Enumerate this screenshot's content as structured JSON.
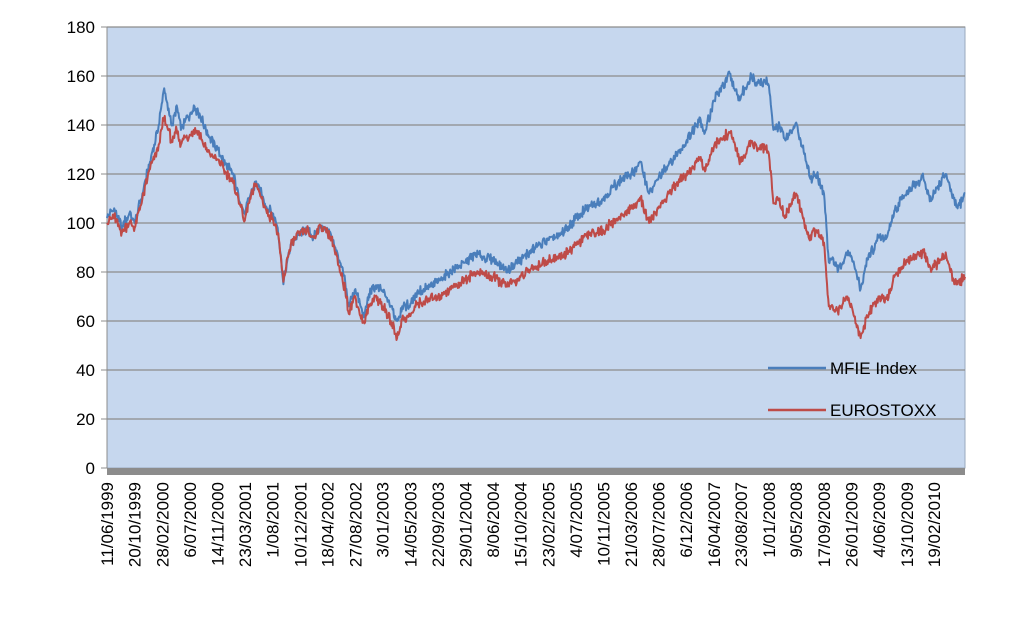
{
  "chart_data": {
    "type": "line",
    "title": "",
    "xlabel": "",
    "ylabel": "",
    "ylim": [
      0,
      180
    ],
    "yticks": [
      0,
      20,
      40,
      60,
      80,
      100,
      120,
      140,
      160,
      180
    ],
    "xlim": [
      "1999-06-11",
      "2010-07-15"
    ],
    "xtick_labels": [
      "11/06/1999",
      "20/10/1999",
      "28/02/2000",
      "6/07/2000",
      "14/11/2000",
      "23/03/2001",
      "1/08/2001",
      "10/12/2001",
      "18/04/2002",
      "27/08/2002",
      "3/01/2003",
      "14/05/2003",
      "22/09/2003",
      "29/01/2004",
      "8/06/2004",
      "15/10/2004",
      "23/02/2005",
      "4/07/2005",
      "10/11/2005",
      "21/03/2006",
      "28/07/2006",
      "6/12/2006",
      "16/04/2007",
      "23/08/2007",
      "1/01/2008",
      "9/05/2008",
      "17/09/2008",
      "26/01/2009",
      "4/06/2009",
      "13/10/2009",
      "19/02/2010"
    ],
    "xtick_dates": [
      "1999-06-11",
      "1999-10-20",
      "2000-02-28",
      "2000-07-06",
      "2000-11-14",
      "2001-03-23",
      "2001-08-01",
      "2001-12-10",
      "2002-04-18",
      "2002-08-27",
      "2003-01-03",
      "2003-05-14",
      "2003-09-22",
      "2004-01-29",
      "2004-06-08",
      "2004-10-15",
      "2005-02-23",
      "2005-07-04",
      "2005-11-10",
      "2006-03-21",
      "2006-07-28",
      "2006-12-06",
      "2007-04-16",
      "2007-08-23",
      "2008-01-01",
      "2008-05-09",
      "2008-09-17",
      "2009-01-26",
      "2009-06-04",
      "2009-10-13",
      "2010-02-19"
    ],
    "grid": true,
    "legend_position": "bottom-right",
    "plot_background": "#c6d7ee",
    "series": [
      {
        "name": "MFIE Index",
        "color": "#4a7ebb",
        "points": [
          [
            "1999-06-11",
            102
          ],
          [
            "1999-07-15",
            106
          ],
          [
            "1999-08-20",
            98
          ],
          [
            "1999-09-25",
            104
          ],
          [
            "1999-10-20",
            100
          ],
          [
            "1999-11-25",
            112
          ],
          [
            "1999-12-31",
            125
          ],
          [
            "2000-01-20",
            132
          ],
          [
            "2000-02-10",
            140
          ],
          [
            "2000-03-07",
            155
          ],
          [
            "2000-03-25",
            146
          ],
          [
            "2000-04-15",
            140
          ],
          [
            "2000-05-05",
            148
          ],
          [
            "2000-05-25",
            138
          ],
          [
            "2000-06-15",
            142
          ],
          [
            "2000-07-06",
            144
          ],
          [
            "2000-07-25",
            148
          ],
          [
            "2000-08-15",
            145
          ],
          [
            "2000-09-01",
            142
          ],
          [
            "2000-09-20",
            138
          ],
          [
            "2000-10-10",
            135
          ],
          [
            "2000-11-14",
            130
          ],
          [
            "2000-12-20",
            124
          ],
          [
            "2001-01-25",
            120
          ],
          [
            "2001-02-20",
            112
          ],
          [
            "2001-03-23",
            104
          ],
          [
            "2001-04-10",
            110
          ],
          [
            "2001-05-15",
            117
          ],
          [
            "2001-06-10",
            112
          ],
          [
            "2001-07-05",
            106
          ],
          [
            "2001-08-01",
            104
          ],
          [
            "2001-08-25",
            98
          ],
          [
            "2001-09-11",
            85
          ],
          [
            "2001-09-21",
            75
          ],
          [
            "2001-10-10",
            85
          ],
          [
            "2001-11-01",
            92
          ],
          [
            "2001-12-10",
            96
          ],
          [
            "2002-01-10",
            97
          ],
          [
            "2002-02-10",
            94
          ],
          [
            "2002-03-15",
            99
          ],
          [
            "2002-04-18",
            97
          ],
          [
            "2002-05-15",
            93
          ],
          [
            "2002-06-15",
            84
          ],
          [
            "2002-07-10",
            76
          ],
          [
            "2002-07-24",
            66
          ],
          [
            "2002-08-27",
            73
          ],
          [
            "2002-09-20",
            66
          ],
          [
            "2002-10-09",
            62
          ],
          [
            "2002-10-30",
            71
          ],
          [
            "2002-11-28",
            74
          ],
          [
            "2003-01-03",
            72
          ],
          [
            "2003-02-10",
            66
          ],
          [
            "2003-03-12",
            60
          ],
          [
            "2003-04-05",
            66
          ],
          [
            "2003-05-14",
            67
          ],
          [
            "2003-06-15",
            72
          ],
          [
            "2003-07-15",
            73
          ],
          [
            "2003-08-15",
            74
          ],
          [
            "2003-09-22",
            76
          ],
          [
            "2003-11-15",
            80
          ],
          [
            "2004-01-29",
            84
          ],
          [
            "2004-03-10",
            87
          ],
          [
            "2004-04-20",
            86
          ],
          [
            "2004-06-08",
            85
          ],
          [
            "2004-08-12",
            81
          ],
          [
            "2004-10-15",
            85
          ],
          [
            "2004-12-20",
            90
          ],
          [
            "2005-02-23",
            93
          ],
          [
            "2005-04-20",
            95
          ],
          [
            "2005-07-04",
            102
          ],
          [
            "2005-09-10",
            107
          ],
          [
            "2005-11-10",
            110
          ],
          [
            "2006-01-20",
            117
          ],
          [
            "2006-03-21",
            120
          ],
          [
            "2006-05-05",
            125
          ],
          [
            "2006-06-14",
            112
          ],
          [
            "2006-07-28",
            118
          ],
          [
            "2006-09-15",
            124
          ],
          [
            "2006-12-06",
            133
          ],
          [
            "2007-02-10",
            143
          ],
          [
            "2007-03-05",
            137
          ],
          [
            "2007-04-16",
            150
          ],
          [
            "2007-05-31",
            156
          ],
          [
            "2007-06-30",
            161
          ],
          [
            "2007-07-25",
            154
          ],
          [
            "2007-08-16",
            150
          ],
          [
            "2007-08-23",
            152
          ],
          [
            "2007-10-10",
            160
          ],
          [
            "2007-11-10",
            157
          ],
          [
            "2007-12-15",
            158
          ],
          [
            "2008-01-01",
            156
          ],
          [
            "2008-01-22",
            138
          ],
          [
            "2008-02-20",
            140
          ],
          [
            "2008-03-17",
            134
          ],
          [
            "2008-04-15",
            137
          ],
          [
            "2008-05-09",
            141
          ],
          [
            "2008-06-25",
            125
          ],
          [
            "2008-07-15",
            118
          ],
          [
            "2008-08-15",
            120
          ],
          [
            "2008-09-17",
            112
          ],
          [
            "2008-10-10",
            84
          ],
          [
            "2008-10-28",
            86
          ],
          [
            "2008-11-21",
            80
          ],
          [
            "2008-12-31",
            88
          ],
          [
            "2009-01-26",
            86
          ],
          [
            "2009-03-09",
            73
          ],
          [
            "2009-04-10",
            85
          ],
          [
            "2009-06-04",
            94
          ],
          [
            "2009-07-10",
            94
          ],
          [
            "2009-08-15",
            105
          ],
          [
            "2009-10-13",
            113
          ],
          [
            "2009-11-20",
            116
          ],
          [
            "2009-12-31",
            118
          ],
          [
            "2010-02-05",
            109
          ],
          [
            "2010-02-19",
            112
          ],
          [
            "2010-04-15",
            120
          ],
          [
            "2010-05-07",
            113
          ],
          [
            "2010-06-10",
            106
          ],
          [
            "2010-07-15",
            112
          ]
        ]
      },
      {
        "name": "EUROSTOXX",
        "color": "#be4b48",
        "points": [
          [
            "1999-06-11",
            100
          ],
          [
            "1999-07-15",
            103
          ],
          [
            "1999-08-20",
            96
          ],
          [
            "1999-09-25",
            100
          ],
          [
            "1999-10-20",
            98
          ],
          [
            "1999-11-25",
            110
          ],
          [
            "1999-12-31",
            122
          ],
          [
            "2000-01-20",
            126
          ],
          [
            "2000-02-10",
            132
          ],
          [
            "2000-03-07",
            143
          ],
          [
            "2000-03-25",
            138
          ],
          [
            "2000-04-15",
            133
          ],
          [
            "2000-05-05",
            138
          ],
          [
            "2000-05-25",
            132
          ],
          [
            "2000-06-15",
            135
          ],
          [
            "2000-07-06",
            136
          ],
          [
            "2000-07-25",
            138
          ],
          [
            "2000-08-15",
            137
          ],
          [
            "2000-09-01",
            134
          ],
          [
            "2000-09-20",
            130
          ],
          [
            "2000-10-10",
            128
          ],
          [
            "2000-11-14",
            126
          ],
          [
            "2000-12-20",
            121
          ],
          [
            "2001-01-25",
            117
          ],
          [
            "2001-02-20",
            110
          ],
          [
            "2001-03-23",
            101
          ],
          [
            "2001-04-10",
            108
          ],
          [
            "2001-05-15",
            116
          ],
          [
            "2001-06-10",
            110
          ],
          [
            "2001-07-05",
            104
          ],
          [
            "2001-08-01",
            102
          ],
          [
            "2001-08-25",
            96
          ],
          [
            "2001-09-11",
            84
          ],
          [
            "2001-09-21",
            76
          ],
          [
            "2001-10-10",
            86
          ],
          [
            "2001-11-01",
            92
          ],
          [
            "2001-12-10",
            96
          ],
          [
            "2002-01-10",
            97
          ],
          [
            "2002-02-10",
            94
          ],
          [
            "2002-03-15",
            99
          ],
          [
            "2002-04-18",
            96
          ],
          [
            "2002-05-15",
            91
          ],
          [
            "2002-06-15",
            80
          ],
          [
            "2002-07-10",
            73
          ],
          [
            "2002-07-24",
            64
          ],
          [
            "2002-08-27",
            70
          ],
          [
            "2002-09-20",
            62
          ],
          [
            "2002-10-09",
            59
          ],
          [
            "2002-10-30",
            66
          ],
          [
            "2002-11-28",
            70
          ],
          [
            "2003-01-03",
            66
          ],
          [
            "2003-02-10",
            60
          ],
          [
            "2003-03-12",
            53
          ],
          [
            "2003-04-05",
            61
          ],
          [
            "2003-05-14",
            62
          ],
          [
            "2003-06-15",
            67
          ],
          [
            "2003-07-15",
            68
          ],
          [
            "2003-08-15",
            69
          ],
          [
            "2003-09-22",
            70
          ],
          [
            "2003-11-15",
            73
          ],
          [
            "2004-01-29",
            77
          ],
          [
            "2004-03-10",
            80
          ],
          [
            "2004-04-20",
            79
          ],
          [
            "2004-06-08",
            78
          ],
          [
            "2004-08-12",
            74
          ],
          [
            "2004-10-15",
            78
          ],
          [
            "2004-12-20",
            82
          ],
          [
            "2005-02-23",
            85
          ],
          [
            "2005-04-20",
            86
          ],
          [
            "2005-07-04",
            91
          ],
          [
            "2005-09-10",
            96
          ],
          [
            "2005-11-10",
            97
          ],
          [
            "2006-01-20",
            102
          ],
          [
            "2006-03-21",
            106
          ],
          [
            "2006-05-05",
            110
          ],
          [
            "2006-06-14",
            100
          ],
          [
            "2006-07-28",
            106
          ],
          [
            "2006-09-15",
            112
          ],
          [
            "2006-12-06",
            120
          ],
          [
            "2007-02-10",
            126
          ],
          [
            "2007-03-05",
            121
          ],
          [
            "2007-04-16",
            131
          ],
          [
            "2007-05-31",
            135
          ],
          [
            "2007-06-30",
            137
          ],
          [
            "2007-07-25",
            132
          ],
          [
            "2007-08-16",
            124
          ],
          [
            "2007-08-23",
            125
          ],
          [
            "2007-10-10",
            133
          ],
          [
            "2007-11-10",
            130
          ],
          [
            "2007-12-15",
            131
          ],
          [
            "2008-01-01",
            128
          ],
          [
            "2008-01-22",
            108
          ],
          [
            "2008-02-20",
            110
          ],
          [
            "2008-03-17",
            102
          ],
          [
            "2008-04-15",
            108
          ],
          [
            "2008-05-09",
            112
          ],
          [
            "2008-06-25",
            97
          ],
          [
            "2008-07-15",
            95
          ],
          [
            "2008-08-15",
            97
          ],
          [
            "2008-09-17",
            92
          ],
          [
            "2008-10-10",
            66
          ],
          [
            "2008-10-28",
            66
          ],
          [
            "2008-11-21",
            64
          ],
          [
            "2008-12-31",
            70
          ],
          [
            "2009-01-26",
            66
          ],
          [
            "2009-03-09",
            53
          ],
          [
            "2009-04-10",
            62
          ],
          [
            "2009-06-04",
            70
          ],
          [
            "2009-07-10",
            69
          ],
          [
            "2009-08-15",
            78
          ],
          [
            "2009-10-13",
            85
          ],
          [
            "2009-11-20",
            86
          ],
          [
            "2009-12-31",
            88
          ],
          [
            "2010-02-05",
            80
          ],
          [
            "2010-02-19",
            82
          ],
          [
            "2010-04-15",
            88
          ],
          [
            "2010-05-07",
            80
          ],
          [
            "2010-06-10",
            75
          ],
          [
            "2010-07-15",
            78
          ]
        ]
      }
    ]
  }
}
